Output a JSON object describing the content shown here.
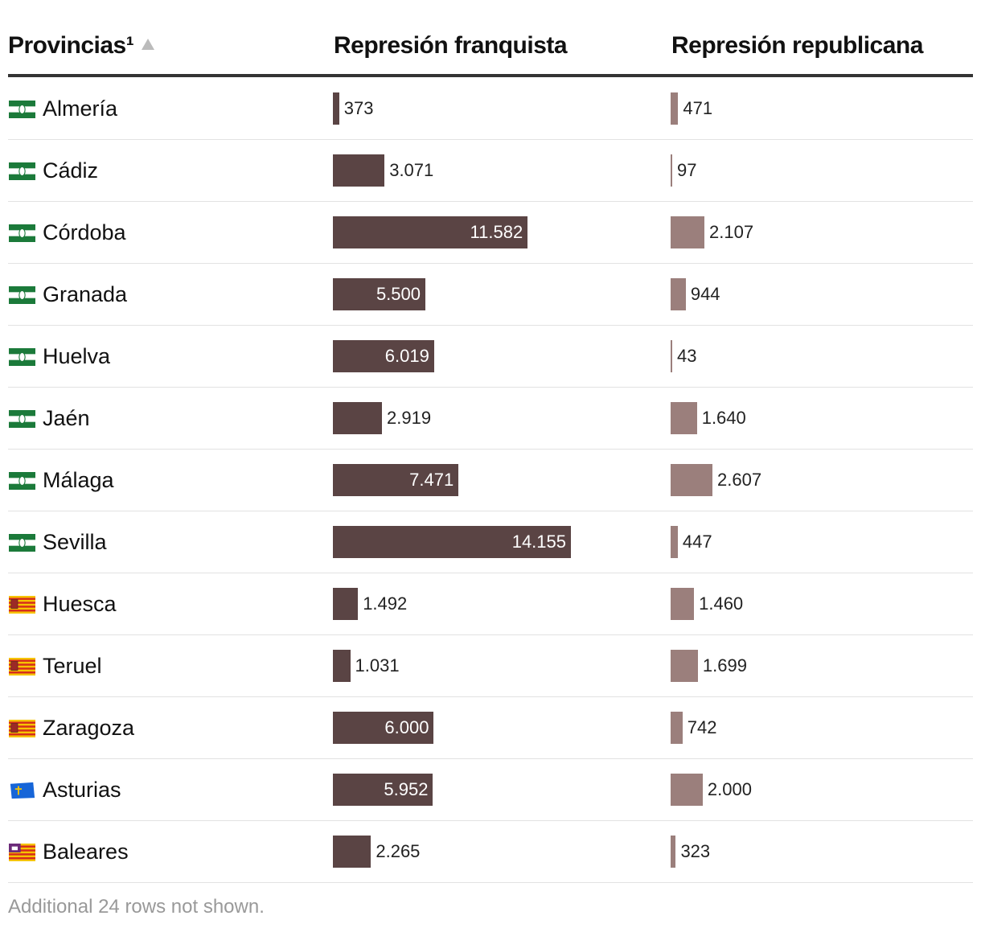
{
  "table": {
    "headers": {
      "province": "Provincias¹",
      "franquista": "Represión franquista",
      "republicana": "Represión republicana"
    },
    "footnote": "Additional 24 rows not shown."
  },
  "chart_data": {
    "type": "table",
    "title": "",
    "columns": [
      "Provincias¹",
      "Represión franquista",
      "Represión republicana"
    ],
    "sort": "Provincias¹ ascending",
    "colors": {
      "franquista": "#5a4444",
      "republicana": "#9b7f7c"
    },
    "rows": [
      {
        "name": "Almería",
        "region": "andalucia",
        "franquista": 373,
        "franquista_label": "373",
        "republicana": 471,
        "republicana_label": "471"
      },
      {
        "name": "Cádiz",
        "region": "andalucia",
        "franquista": 3071,
        "franquista_label": "3.071",
        "republicana": 97,
        "republicana_label": "97"
      },
      {
        "name": "Córdoba",
        "region": "andalucia",
        "franquista": 11582,
        "franquista_label": "11.582",
        "republicana": 2107,
        "republicana_label": "2.107"
      },
      {
        "name": "Granada",
        "region": "andalucia",
        "franquista": 5500,
        "franquista_label": "5.500",
        "republicana": 944,
        "republicana_label": "944"
      },
      {
        "name": "Huelva",
        "region": "andalucia",
        "franquista": 6019,
        "franquista_label": "6.019",
        "republicana": 43,
        "republicana_label": "43"
      },
      {
        "name": "Jaén",
        "region": "andalucia",
        "franquista": 2919,
        "franquista_label": "2.919",
        "republicana": 1640,
        "republicana_label": "1.640"
      },
      {
        "name": "Málaga",
        "region": "andalucia",
        "franquista": 7471,
        "franquista_label": "7.471",
        "republicana": 2607,
        "republicana_label": "2.607"
      },
      {
        "name": "Sevilla",
        "region": "andalucia",
        "franquista": 14155,
        "franquista_label": "14.155",
        "republicana": 447,
        "republicana_label": "447"
      },
      {
        "name": "Huesca",
        "region": "aragon",
        "franquista": 1492,
        "franquista_label": "1.492",
        "republicana": 1460,
        "republicana_label": "1.460"
      },
      {
        "name": "Teruel",
        "region": "aragon",
        "franquista": 1031,
        "franquista_label": "1.031",
        "republicana": 1699,
        "republicana_label": "1.699"
      },
      {
        "name": "Zaragoza",
        "region": "aragon",
        "franquista": 6000,
        "franquista_label": "6.000",
        "republicana": 742,
        "republicana_label": "742"
      },
      {
        "name": "Asturias",
        "region": "asturias",
        "franquista": 5952,
        "franquista_label": "5.952",
        "republicana": 2000,
        "republicana_label": "2.000"
      },
      {
        "name": "Baleares",
        "region": "baleares",
        "franquista": 2265,
        "franquista_label": "2.265",
        "republicana": 323,
        "republicana_label": "323"
      }
    ]
  }
}
